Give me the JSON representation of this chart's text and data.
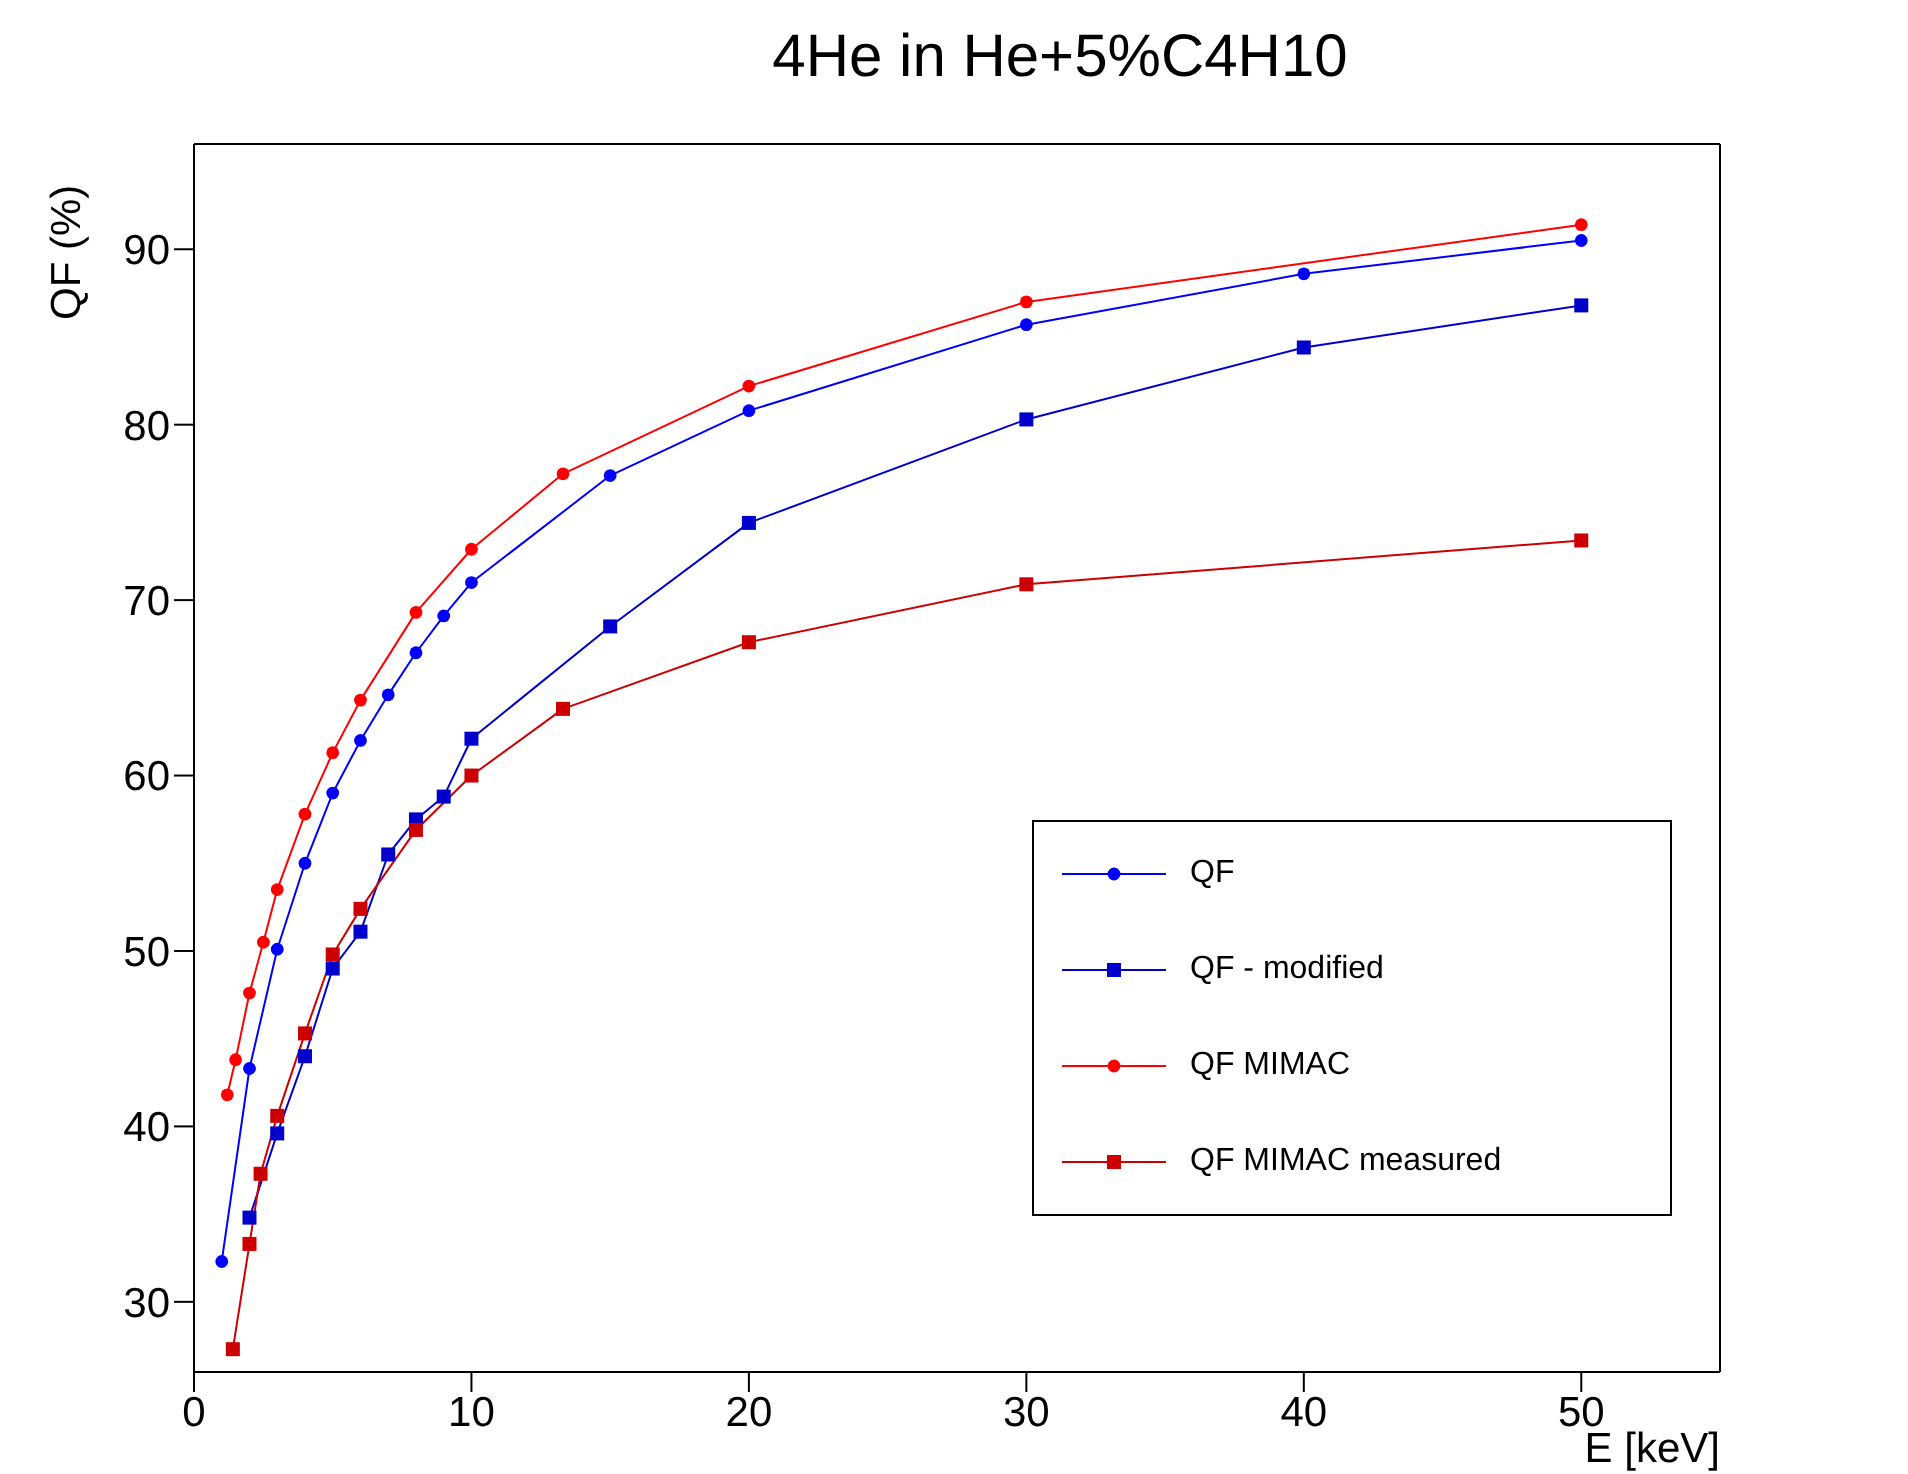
{
  "chart_data": {
    "type": "line",
    "title": "4He in He+5%C4H10",
    "xlabel": "E [keV]",
    "ylabel": "QF (%)",
    "xlim": [
      0,
      55
    ],
    "xticks": [
      0,
      10,
      20,
      30,
      40,
      50
    ],
    "ylim": [
      26,
      96
    ],
    "yticks": [
      30,
      40,
      50,
      60,
      70,
      80,
      90
    ],
    "legend": "bottom right",
    "line_style": "solid",
    "series": [
      {
        "name": "QF",
        "color": "#0000ff",
        "marker": "circle",
        "x": [
          1,
          2,
          3,
          4,
          5,
          6,
          7,
          8,
          9,
          10,
          15,
          20,
          30,
          40,
          50
        ],
        "values": [
          32.3,
          43.3,
          50.1,
          55.0,
          59.0,
          62.0,
          64.6,
          67.0,
          69.1,
          71.0,
          77.1,
          80.8,
          85.7,
          88.6,
          90.5
        ]
      },
      {
        "name": "QF - modified",
        "color": "#0000cc",
        "marker": "square",
        "x": [
          2,
          3,
          4,
          5,
          6,
          7,
          8,
          9,
          10,
          15,
          20,
          30,
          40,
          50
        ],
        "values": [
          34.8,
          39.6,
          44.0,
          49.0,
          51.1,
          55.5,
          57.5,
          58.8,
          62.1,
          68.5,
          74.4,
          80.3,
          84.4,
          86.8
        ]
      },
      {
        "name": "QF MIMAC",
        "color": "#ff0000",
        "marker": "circle",
        "x": [
          1.2,
          1.5,
          2,
          2.5,
          3,
          4,
          5,
          6,
          8,
          10,
          13.3,
          20,
          30,
          50
        ],
        "values": [
          41.8,
          43.8,
          47.6,
          50.5,
          53.5,
          57.8,
          61.3,
          64.3,
          69.3,
          72.9,
          77.2,
          82.2,
          87.0,
          91.4
        ]
      },
      {
        "name": "QF MIMAC measured",
        "color": "#cc0000",
        "marker": "square",
        "x": [
          1.4,
          2,
          2.4,
          3,
          4,
          5,
          6,
          8,
          10,
          13.3,
          20,
          30,
          50
        ],
        "values": [
          27.3,
          33.3,
          37.3,
          40.6,
          45.3,
          49.8,
          52.4,
          56.9,
          60.0,
          63.8,
          67.6,
          70.9,
          73.4
        ]
      }
    ]
  }
}
